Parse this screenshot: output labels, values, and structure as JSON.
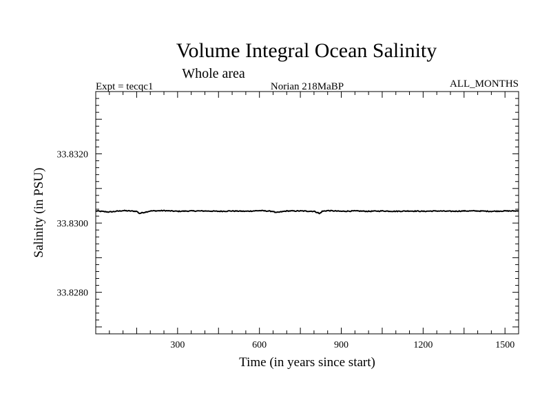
{
  "chart_data": {
    "type": "line",
    "title": "Volume Integral Ocean Salinity",
    "subtitle": "Whole area",
    "expt_label": "Expt = tecqc1",
    "run_label": "Norian 218MaBP",
    "season_label": "ALL_MONTHS",
    "xlabel": "Time (in years since start)",
    "ylabel": "Salinity (in PSU)",
    "xlim": [
      0,
      1550
    ],
    "ylim": [
      33.8268,
      33.8338
    ],
    "x_ticks": [
      300,
      600,
      900,
      1200,
      1500
    ],
    "x_tick_labels": [
      "300",
      "600",
      "900",
      "1200",
      "1500"
    ],
    "y_ticks": [
      33.828,
      33.83,
      33.832
    ],
    "y_tick_labels": [
      "33.8280",
      "33.8300",
      "33.8320"
    ],
    "grid": false,
    "series": [
      {
        "name": "salinity",
        "x": [
          0,
          50,
          100,
          150,
          160,
          200,
          250,
          300,
          350,
          400,
          450,
          500,
          550,
          600,
          650,
          660,
          700,
          750,
          800,
          815,
          820,
          830,
          850,
          900,
          950,
          1000,
          1050,
          1100,
          1150,
          1200,
          1250,
          1300,
          1350,
          1400,
          1450,
          1500,
          1550
        ],
        "values": [
          33.83035,
          33.83032,
          33.83036,
          33.83034,
          33.83028,
          33.83035,
          33.83036,
          33.83034,
          33.83035,
          33.83035,
          33.83034,
          33.83035,
          33.83034,
          33.83036,
          33.83034,
          33.8303,
          33.83035,
          33.83035,
          33.83034,
          33.8303,
          33.83027,
          33.83034,
          33.83036,
          33.83034,
          33.83035,
          33.83034,
          33.83035,
          33.83034,
          33.83035,
          33.83034,
          33.83035,
          33.83034,
          33.83035,
          33.83035,
          33.83034,
          33.83035,
          33.83035
        ]
      }
    ]
  }
}
